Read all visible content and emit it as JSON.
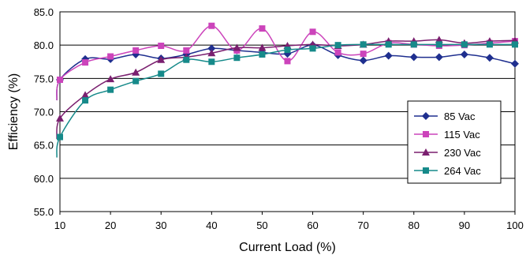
{
  "chart_data": {
    "type": "line",
    "xlabel": "Current Load (%)",
    "ylabel": "Efficiency (%)",
    "xlim": [
      10,
      100
    ],
    "ylim": [
      55,
      85
    ],
    "xticks": [
      "10",
      "20",
      "30",
      "40",
      "50",
      "60",
      "70",
      "80",
      "90",
      "100"
    ],
    "yticks": [
      "55.0",
      "60.0",
      "65.0",
      "70.0",
      "75.0",
      "80.0",
      "85.0"
    ],
    "grid": "horizontal",
    "legend_position": "right",
    "x": [
      10,
      15,
      20,
      25,
      30,
      35,
      40,
      45,
      50,
      55,
      60,
      65,
      70,
      75,
      80,
      85,
      90,
      95,
      100
    ],
    "series": [
      {
        "name": "85 Vac",
        "color": "#1f2f8f",
        "marker": "diamond",
        "values": [
          74.8,
          77.9,
          77.9,
          78.6,
          78.0,
          78.6,
          79.5,
          79.2,
          78.9,
          78.7,
          80.0,
          78.5,
          77.7,
          78.4,
          78.2,
          78.2,
          78.6,
          78.1,
          77.2
        ]
      },
      {
        "name": "115 Vac",
        "color": "#cc44bb",
        "marker": "square",
        "values": [
          74.8,
          77.4,
          78.3,
          79.2,
          79.9,
          79.2,
          82.9,
          79.2,
          82.5,
          77.6,
          82.0,
          78.9,
          78.7,
          80.3,
          80.1,
          79.9,
          80.0,
          80.3,
          80.6
        ]
      },
      {
        "name": "230 Vac",
        "color": "#7a1f6f",
        "marker": "triangle",
        "values": [
          69.0,
          72.5,
          74.9,
          75.9,
          77.8,
          78.2,
          78.8,
          79.6,
          79.6,
          79.9,
          80.1,
          79.9,
          80.1,
          80.6,
          80.6,
          80.8,
          80.3,
          80.6,
          80.7
        ]
      },
      {
        "name": "264 Vac",
        "color": "#168a8a",
        "marker": "square",
        "values": [
          66.2,
          71.7,
          73.3,
          74.6,
          75.7,
          77.8,
          77.5,
          78.1,
          78.6,
          79.3,
          79.5,
          80.0,
          80.1,
          80.1,
          80.1,
          80.1,
          80.1,
          80.1,
          80.1
        ]
      }
    ]
  }
}
